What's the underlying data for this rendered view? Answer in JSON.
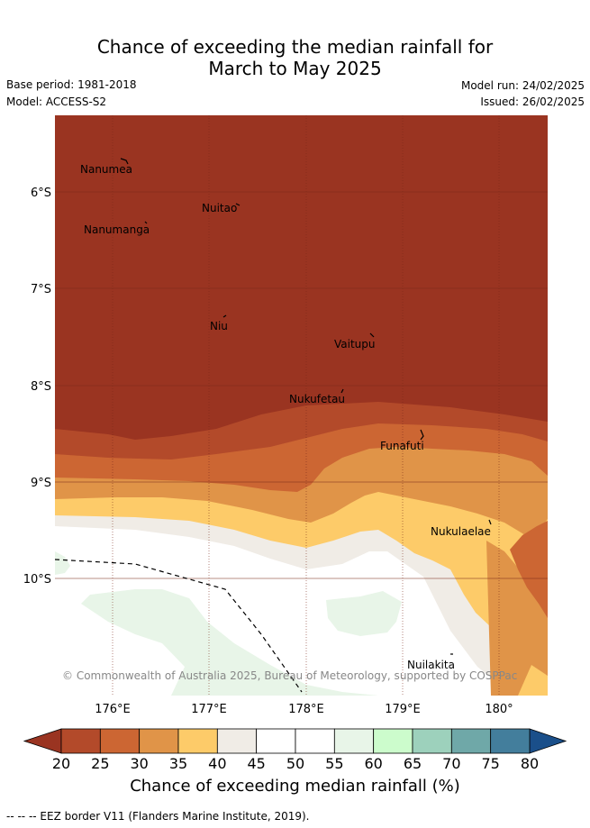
{
  "header": {
    "title_line1": "Chance of exceeding the median rainfall for",
    "title_line2": "March to May 2025",
    "base_period": "Base period: 1981-2018",
    "model": "Model: ACCESS-S2",
    "model_run": "Model run: 24/02/2025",
    "issued": "Issued: 26/02/2025"
  },
  "map": {
    "places": [
      "Nanumea",
      "Nuitao",
      "Nanumanga",
      "Niu",
      "Vaitupu",
      "Nukufetau",
      "Funafuti",
      "Nukulaelae",
      "Nuilakita"
    ],
    "lat_ticks": [
      "6°S",
      "7°S",
      "8°S",
      "9°S",
      "10°S"
    ],
    "lon_ticks": [
      "176°E",
      "177°E",
      "178°E",
      "179°E",
      "180°"
    ],
    "copyright": "© Commonwealth of Australia 2025, Bureau of Meteorology, supported by COSPPac"
  },
  "colorbar": {
    "ticks": [
      "20",
      "25",
      "30",
      "35",
      "40",
      "45",
      "50",
      "55",
      "60",
      "65",
      "70",
      "75",
      "80"
    ],
    "colors": [
      "#b34a2a",
      "#cc6633",
      "#e09448",
      "#fdcb69",
      "#f0ece6",
      "#ffffff",
      "#ffffff",
      "#e8f5e8",
      "#ccfccc",
      "#9dd1bc",
      "#6fa8a8",
      "#437e9c"
    ],
    "under_color": "#9a3421",
    "over_color": "#1a4f8a",
    "title": "Chance of exceeding median rainfall (%)"
  },
  "footer": {
    "legend_text": "--  --  -- EEZ border V11 (Flanders Marine Institute, 2019)."
  }
}
